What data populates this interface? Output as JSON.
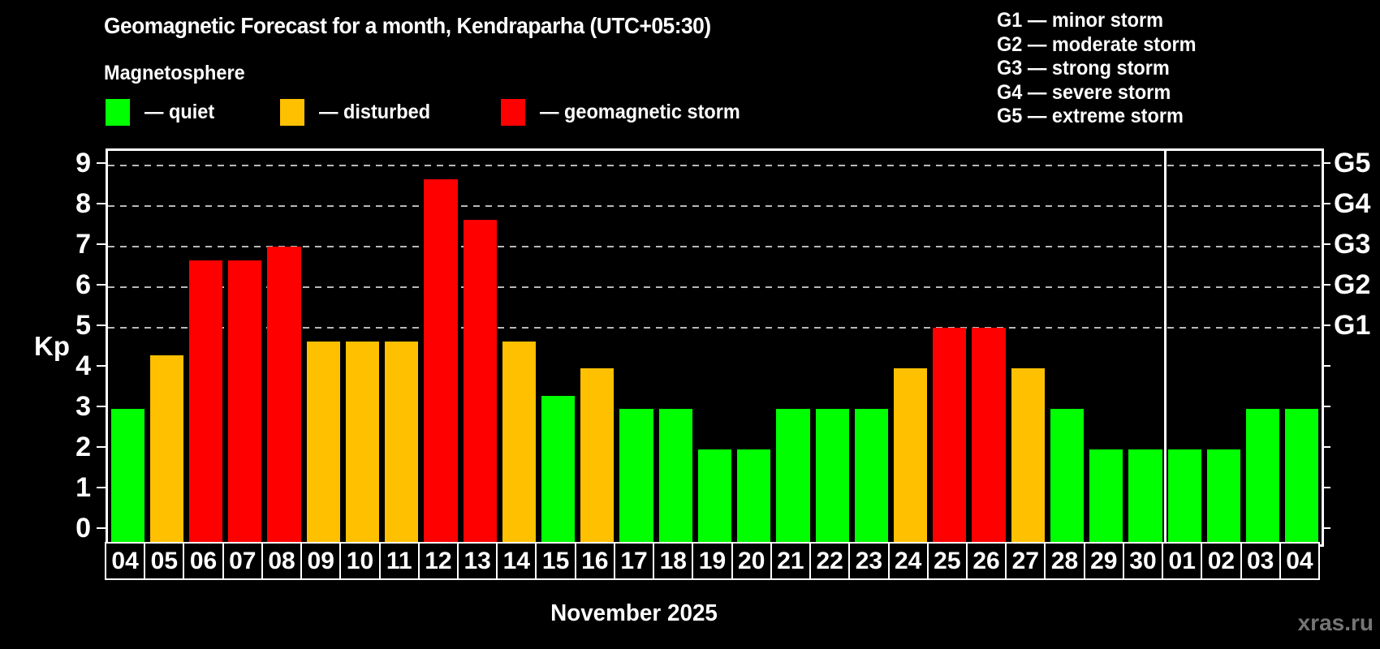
{
  "header": {
    "title": "Geomagnetic Forecast for a month, Kendraparha (UTC+05:30)",
    "subtitle": "Magnetosphere"
  },
  "legend": {
    "items": [
      {
        "label": "— quiet",
        "status": "quiet"
      },
      {
        "label": "— disturbed",
        "status": "disturbed"
      },
      {
        "label": "— geomagnetic storm",
        "status": "storm"
      }
    ]
  },
  "g_scale": {
    "items": [
      "G1 — minor storm",
      "G2 — moderate storm",
      "G3 — strong storm",
      "G4 — severe storm",
      "G5 — extreme storm"
    ]
  },
  "colors": {
    "quiet": "#00ff00",
    "disturbed": "#ffc000",
    "storm": "#ff0000",
    "grid": "#b8b8b8",
    "axis": "#ffffff",
    "watermark": "#757575"
  },
  "chart_data": {
    "type": "bar",
    "title": "Geomagnetic Forecast for a month, Kendraparha (UTC+05:30)",
    "subtitle": "Magnetosphere",
    "ylabel": "Kp",
    "xlabel": "November 2025",
    "ylim": [
      0,
      9
    ],
    "yticks": [
      0,
      1,
      2,
      3,
      4,
      5,
      6,
      7,
      8,
      9
    ],
    "gridlines": [
      5,
      6,
      7,
      8,
      9
    ],
    "grid": "dashed, levels 5-9 only",
    "legend_position": "top",
    "right_axis": [
      {
        "kp": 9,
        "label": "G5"
      },
      {
        "kp": 8,
        "label": "G4"
      },
      {
        "kp": 7,
        "label": "G3"
      },
      {
        "kp": 6,
        "label": "G2"
      },
      {
        "kp": 5,
        "label": "G1"
      }
    ],
    "month_separator_after_index": 26,
    "days": [
      {
        "label": "04",
        "kp": 3.0,
        "status": "quiet"
      },
      {
        "label": "05",
        "kp": 4.33,
        "status": "disturbed"
      },
      {
        "label": "06",
        "kp": 6.67,
        "status": "storm"
      },
      {
        "label": "07",
        "kp": 6.67,
        "status": "storm"
      },
      {
        "label": "08",
        "kp": 7.0,
        "status": "storm"
      },
      {
        "label": "09",
        "kp": 4.67,
        "status": "disturbed"
      },
      {
        "label": "10",
        "kp": 4.67,
        "status": "disturbed"
      },
      {
        "label": "11",
        "kp": 4.67,
        "status": "disturbed"
      },
      {
        "label": "12",
        "kp": 8.67,
        "status": "storm"
      },
      {
        "label": "13",
        "kp": 7.67,
        "status": "storm"
      },
      {
        "label": "14",
        "kp": 4.67,
        "status": "disturbed"
      },
      {
        "label": "15",
        "kp": 3.33,
        "status": "quiet"
      },
      {
        "label": "16",
        "kp": 4.0,
        "status": "disturbed"
      },
      {
        "label": "17",
        "kp": 3.0,
        "status": "quiet"
      },
      {
        "label": "18",
        "kp": 3.0,
        "status": "quiet"
      },
      {
        "label": "19",
        "kp": 2.0,
        "status": "quiet"
      },
      {
        "label": "20",
        "kp": 2.0,
        "status": "quiet"
      },
      {
        "label": "21",
        "kp": 3.0,
        "status": "quiet"
      },
      {
        "label": "22",
        "kp": 3.0,
        "status": "quiet"
      },
      {
        "label": "23",
        "kp": 3.0,
        "status": "quiet"
      },
      {
        "label": "24",
        "kp": 4.0,
        "status": "disturbed"
      },
      {
        "label": "25",
        "kp": 5.0,
        "status": "storm"
      },
      {
        "label": "26",
        "kp": 5.0,
        "status": "storm"
      },
      {
        "label": "27",
        "kp": 4.0,
        "status": "disturbed"
      },
      {
        "label": "28",
        "kp": 3.0,
        "status": "quiet"
      },
      {
        "label": "29",
        "kp": 2.0,
        "status": "quiet"
      },
      {
        "label": "30",
        "kp": 2.0,
        "status": "quiet"
      },
      {
        "label": "01",
        "kp": 2.0,
        "status": "quiet"
      },
      {
        "label": "02",
        "kp": 2.0,
        "status": "quiet"
      },
      {
        "label": "03",
        "kp": 3.0,
        "status": "quiet"
      },
      {
        "label": "04",
        "kp": 3.0,
        "status": "quiet"
      }
    ]
  },
  "footer": {
    "month_label": "November 2025",
    "watermark": "xras.ru"
  }
}
